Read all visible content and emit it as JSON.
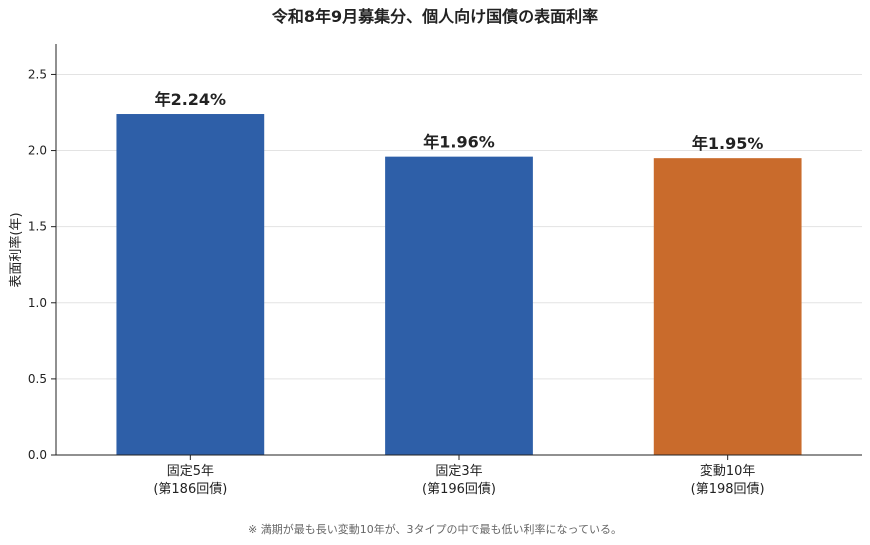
{
  "chart_data": {
    "type": "bar",
    "title": "令和8年9月募集分、個人向け国債の表面利率",
    "ylabel": "表面利率(年)",
    "xlabel": "",
    "ylim": [
      0,
      2.7
    ],
    "yticks": [
      0.0,
      0.5,
      1.0,
      1.5,
      2.0,
      2.5
    ],
    "ytick_labels": [
      "0.0",
      "0.5",
      "1.0",
      "1.5",
      "2.0",
      "2.5"
    ],
    "categories": [
      [
        "固定5年",
        "(第186回債)"
      ],
      [
        "固定3年",
        "(第196回債)"
      ],
      [
        "変動10年",
        "(第198回債)"
      ]
    ],
    "values": [
      2.24,
      1.96,
      1.95
    ],
    "data_labels": [
      "年2.24%",
      "年1.96%",
      "年1.95%"
    ],
    "colors": [
      "#2e5fa8",
      "#2e5fa8",
      "#c96b2c"
    ],
    "grid": "horizontal",
    "footnote": "※ 満期が最も長い変動10年が、3タイプの中で最も低い利率になっている。"
  }
}
